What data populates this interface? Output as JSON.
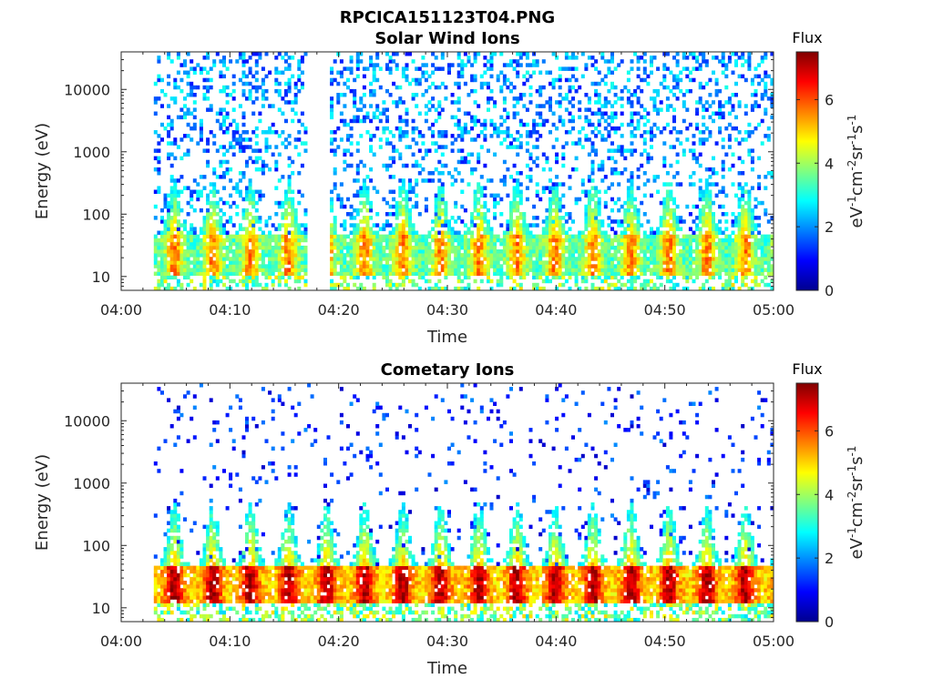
{
  "figure_title": "RPCICA151123T04.PNG",
  "colorbar": {
    "colormap": "jet",
    "range": [
      0,
      7.5
    ],
    "ticks": [
      "0",
      "2",
      "4",
      "6"
    ],
    "title": "Flux"
  },
  "chart_data": [
    {
      "type": "heatmap",
      "title": "Solar Wind Ions",
      "xlabel": "Time",
      "ylabel": "Energy (eV)",
      "ylim": [
        6,
        40000
      ],
      "yscale": "log",
      "xticks": [
        "04:00",
        "04:10",
        "04:20",
        "04:30",
        "04:40",
        "04:50",
        "05:00"
      ],
      "yticks": [
        "10",
        "100",
        "1000",
        "10000"
      ],
      "colorbar_label": "eV-1cm-2sr-1s-1",
      "data_start": "04:03",
      "data_end": "05:00",
      "gap": [
        "04:17",
        "04:19"
      ],
      "pulse_period_min": 3.5,
      "band_energy_eV": [
        10,
        45
      ],
      "band_peak_flux": 5.6,
      "background_flux": [
        1,
        3
      ]
    },
    {
      "type": "heatmap",
      "title": "Cometary Ions",
      "xlabel": "Time",
      "ylabel": "Energy (eV)",
      "ylim": [
        6,
        40000
      ],
      "yscale": "log",
      "xticks": [
        "04:00",
        "04:10",
        "04:20",
        "04:30",
        "04:40",
        "04:50",
        "05:00"
      ],
      "yticks": [
        "10",
        "100",
        "1000",
        "10000"
      ],
      "colorbar_label": "eV-1cm-2sr-1s-1",
      "data_start": "04:03",
      "data_end": "05:00",
      "pulse_period_min": 3.5,
      "band_energy_eV": [
        12,
        45
      ],
      "band_peak_flux": 7.2,
      "plume_top_eV": 500,
      "background_flux": [
        0.5,
        2
      ]
    }
  ]
}
